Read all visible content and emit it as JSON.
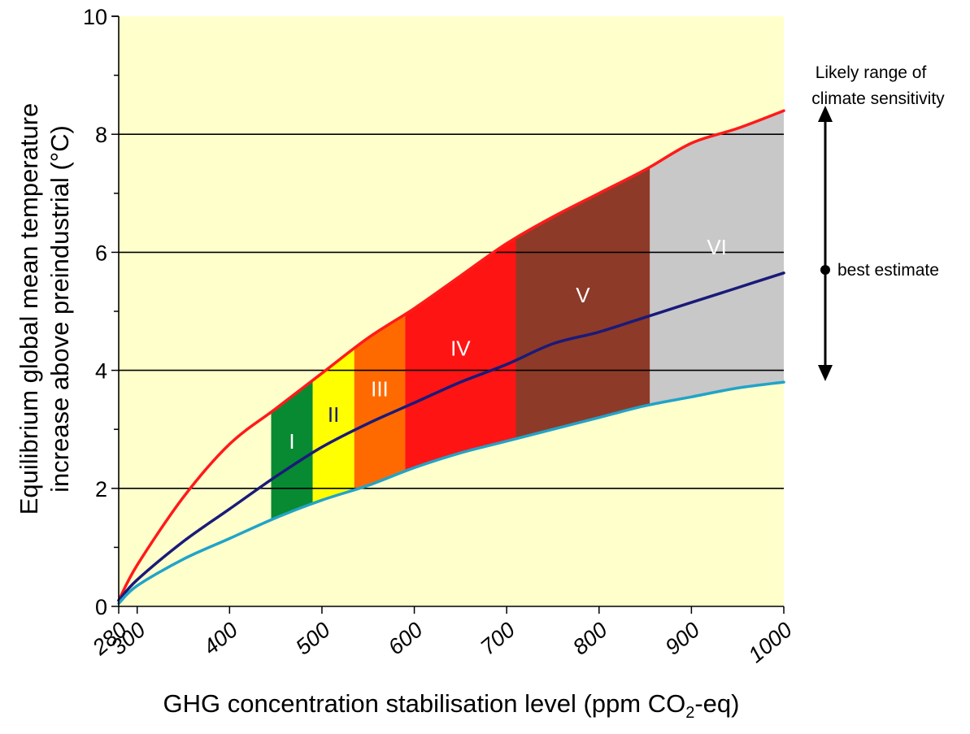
{
  "chart_data": {
    "type": "area",
    "xlabel": "GHG concentration stabilisation level (ppm CO",
    "xlabel_sub": "2",
    "xlabel_suffix": "-eq)",
    "ylabel_line1": "Equilibrium global mean temperature",
    "ylabel_line2": "increase above preindustrial (°C)",
    "xlim": [
      280,
      1000
    ],
    "ylim": [
      0,
      10
    ],
    "xticks": [
      280,
      300,
      400,
      500,
      600,
      700,
      800,
      900,
      1000
    ],
    "yticks": [
      0,
      2,
      4,
      6,
      8,
      10
    ],
    "y_minor_step": 1,
    "gridlines_y": [
      2,
      4,
      6,
      8
    ],
    "plot_background": "#ffffcc",
    "series": [
      {
        "key": "upper",
        "color": "#ff1a1a",
        "x": [
          280,
          300,
          350,
          400,
          450,
          500,
          550,
          600,
          650,
          700,
          750,
          800,
          850,
          900,
          950,
          1000
        ],
        "y": [
          0.1,
          0.7,
          1.85,
          2.75,
          3.35,
          3.95,
          4.55,
          5.05,
          5.6,
          6.15,
          6.6,
          7.0,
          7.4,
          7.85,
          8.1,
          8.4
        ]
      },
      {
        "key": "best",
        "color": "#1a1a7a",
        "x": [
          280,
          300,
          350,
          400,
          450,
          500,
          550,
          600,
          650,
          700,
          750,
          800,
          850,
          900,
          950,
          1000
        ],
        "y": [
          0.1,
          0.45,
          1.1,
          1.65,
          2.2,
          2.7,
          3.1,
          3.45,
          3.8,
          4.1,
          4.45,
          4.65,
          4.9,
          5.15,
          5.4,
          5.65
        ]
      },
      {
        "key": "lower",
        "color": "#22a3c8",
        "x": [
          280,
          300,
          350,
          400,
          450,
          500,
          550,
          600,
          650,
          700,
          750,
          800,
          850,
          900,
          950,
          1000
        ],
        "y": [
          0.05,
          0.35,
          0.8,
          1.15,
          1.5,
          1.8,
          2.05,
          2.35,
          2.6,
          2.8,
          3.0,
          3.2,
          3.4,
          3.55,
          3.7,
          3.8
        ]
      }
    ],
    "categories": [
      {
        "label": "I",
        "x_from": 445,
        "x_to": 490,
        "color": "#078a32",
        "label_color": "#ffffff"
      },
      {
        "label": "II",
        "x_from": 490,
        "x_to": 535,
        "color": "#ffff00",
        "label_color": "#1a1a7a"
      },
      {
        "label": "III",
        "x_from": 535,
        "x_to": 590,
        "color": "#ff6a00",
        "label_color": "#ffffff"
      },
      {
        "label": "IV",
        "x_from": 590,
        "x_to": 710,
        "color": "#ff1414",
        "label_color": "#ffffff"
      },
      {
        "label": "V",
        "x_from": 710,
        "x_to": 855,
        "color": "#8e3a28",
        "label_color": "#ffffff"
      },
      {
        "label": "VI",
        "x_from": 855,
        "x_to": 1000,
        "color": "#c8c8c8",
        "label_color": "#ffffff"
      }
    ],
    "legend": {
      "title_line1": "Likely range of",
      "title_line2": "climate sensitivity",
      "best_estimate": "best estimate",
      "placement": "right"
    }
  }
}
